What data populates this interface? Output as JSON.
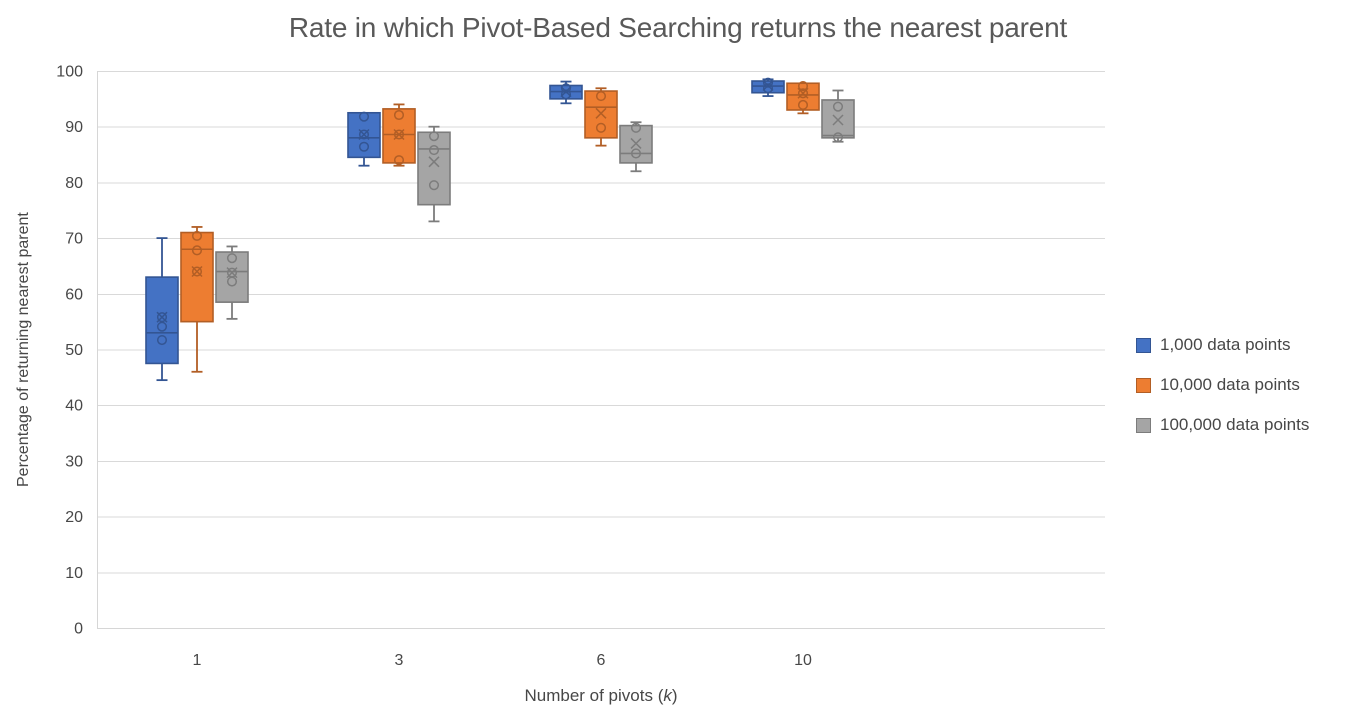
{
  "chart_data": {
    "type": "boxplot",
    "title": "Rate in which Pivot-Based Searching returns the nearest parent",
    "ylabel": "Percentage of returning nearest parent",
    "xlabel_pre": "Number of pivots (",
    "xlabel_var": "k",
    "xlabel_post": ")",
    "ylim": [
      0,
      100
    ],
    "ytick_step": 10,
    "grid": "horizontal",
    "legend_position": "right-middle",
    "background": "#ffffff",
    "gridline_color": "#d9d9d9",
    "axis_line_color": "#d6d6d6",
    "tick_label_color": "#474747",
    "title_color": "#595959",
    "categories": [
      "1",
      "3",
      "6",
      "10"
    ],
    "series": [
      {
        "name": "1,000 data points",
        "fill": "#4472C4",
        "stroke": "#335593",
        "boxes": [
          {
            "low": 44.5,
            "q1": 47.5,
            "median": 53,
            "mean": 55.8,
            "q3": 63,
            "high": 70,
            "points": [
              55.8,
              54.1,
              51.7
            ]
          },
          {
            "low": 83,
            "q1": 84.5,
            "median": 88,
            "mean": 88.6,
            "q3": 92.5,
            "high": 92.5,
            "points": [
              91.8,
              88.6,
              86.4
            ]
          },
          {
            "low": 94.2,
            "q1": 95,
            "median": 96.3,
            "mean": 96.3,
            "q3": 97.4,
            "high": 98.1,
            "points": [
              96.9,
              95.8
            ]
          },
          {
            "low": 95.5,
            "q1": 96.1,
            "median": 97.3,
            "mean": 97.4,
            "q3": 98.2,
            "high": 98.5,
            "points": [
              97.9,
              96.9
            ]
          }
        ]
      },
      {
        "name": "10,000 data points",
        "fill": "#ED7D31",
        "stroke": "#B25E25",
        "boxes": [
          {
            "low": 46,
            "q1": 55,
            "median": 68,
            "mean": 64,
            "q3": 71,
            "high": 72,
            "points": [
              70.4,
              67.8,
              64
            ]
          },
          {
            "low": 83,
            "q1": 83.5,
            "median": 88.6,
            "mean": 88.6,
            "q3": 93.2,
            "high": 94,
            "points": [
              92.1,
              88.6,
              84
            ]
          },
          {
            "low": 86.6,
            "q1": 88,
            "median": 93.5,
            "mean": 92.4,
            "q3": 96.4,
            "high": 96.9,
            "points": [
              95.5,
              89.8
            ]
          },
          {
            "low": 92.4,
            "q1": 93,
            "median": 95.7,
            "mean": 96,
            "q3": 97.8,
            "high": 97.8,
            "points": [
              97.3,
              96,
              93.9
            ]
          }
        ]
      },
      {
        "name": "100,000 data points",
        "fill": "#A5A5A5",
        "stroke": "#7C7C7C",
        "boxes": [
          {
            "low": 55.5,
            "q1": 58.5,
            "median": 64,
            "mean": 63.8,
            "q3": 67.5,
            "high": 68.5,
            "points": [
              66.4,
              63.8,
              62.2
            ]
          },
          {
            "low": 73,
            "q1": 76,
            "median": 86,
            "mean": 83.7,
            "q3": 89,
            "high": 90,
            "points": [
              88.3,
              85.8,
              79.5
            ]
          },
          {
            "low": 82,
            "q1": 83.5,
            "median": 85.2,
            "mean": 87,
            "q3": 90.2,
            "high": 90.8,
            "points": [
              89.8,
              85.2
            ]
          },
          {
            "low": 87.3,
            "q1": 88,
            "median": 88.4,
            "mean": 91.2,
            "q3": 94.8,
            "high": 96.5,
            "points": [
              93.6,
              88.1
            ]
          }
        ]
      }
    ]
  }
}
